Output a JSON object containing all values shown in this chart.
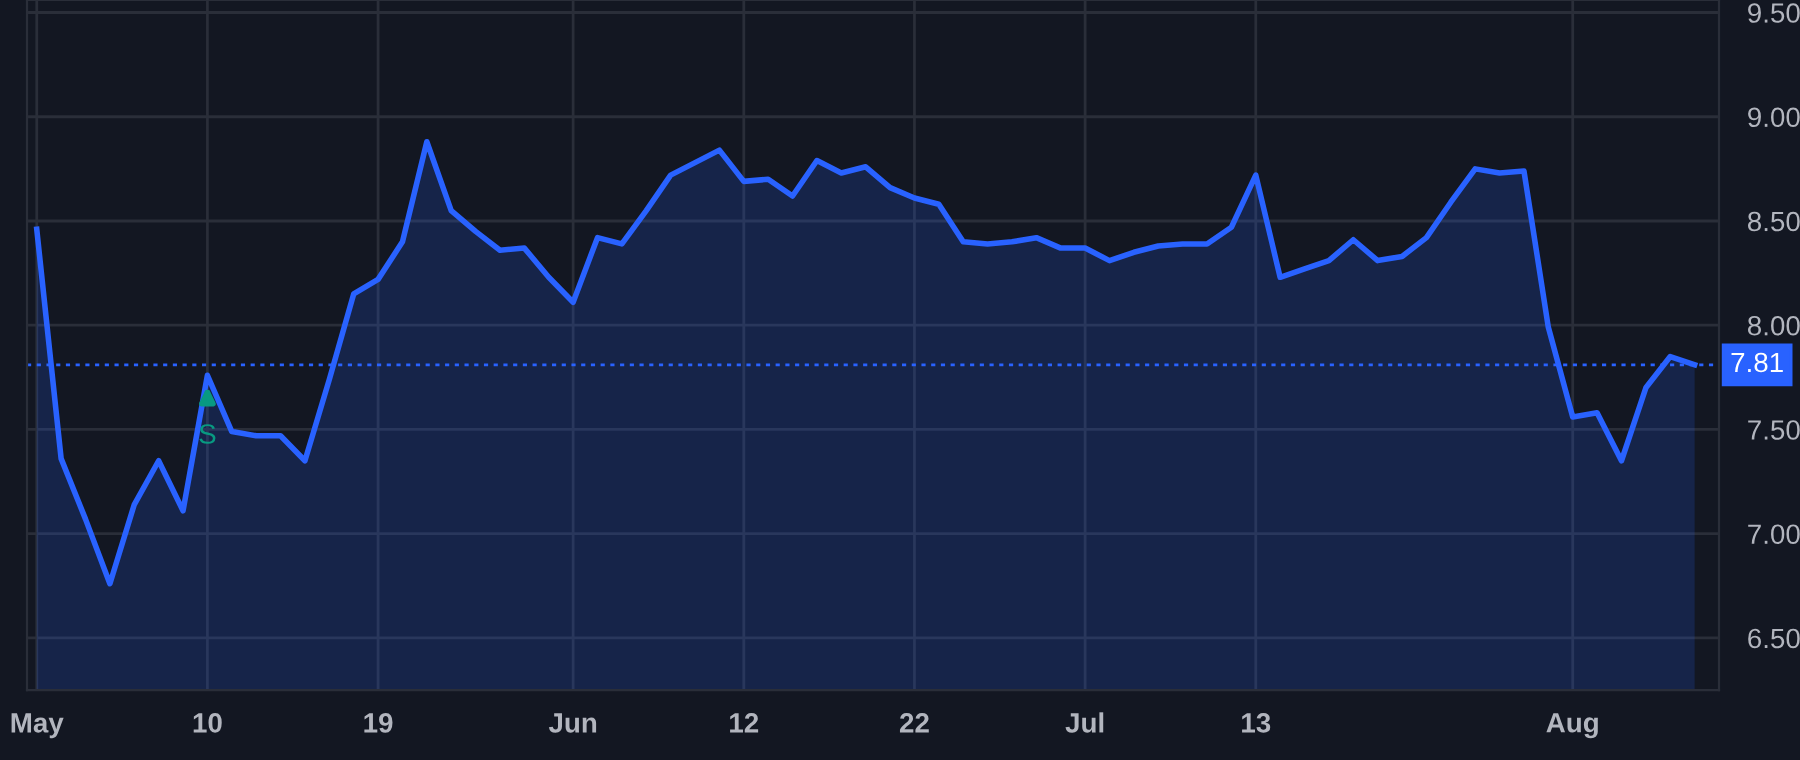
{
  "chart_data": {
    "type": "area",
    "categories": [
      "May",
      null,
      null,
      null,
      null,
      null,
      null,
      "10",
      null,
      null,
      null,
      null,
      null,
      null,
      "19",
      null,
      null,
      null,
      null,
      null,
      null,
      null,
      "Jun",
      null,
      null,
      null,
      null,
      null,
      null,
      "12",
      null,
      null,
      null,
      null,
      null,
      null,
      "22",
      null,
      null,
      null,
      null,
      null,
      null,
      "Jul",
      null,
      null,
      null,
      null,
      null,
      null,
      "13",
      null,
      null,
      null,
      null,
      null,
      null,
      null,
      null,
      null,
      null,
      null,
      null,
      "Aug",
      null,
      null,
      null,
      null,
      null
    ],
    "series": [
      {
        "color": "#2962ff",
        "values": [
          8.46,
          7.36,
          7.07,
          6.76,
          7.14,
          7.35,
          7.11,
          7.76,
          7.49,
          7.47,
          7.47,
          7.35,
          7.74,
          8.15,
          8.22,
          8.4,
          8.88,
          8.55,
          8.45,
          8.36,
          8.37,
          8.23,
          8.11,
          8.42,
          8.39,
          8.55,
          8.72,
          8.78,
          8.84,
          8.69,
          8.7,
          8.62,
          8.79,
          8.73,
          8.76,
          8.66,
          8.61,
          8.58,
          8.4,
          8.39,
          8.4,
          8.42,
          8.37,
          8.37,
          8.31,
          8.35,
          8.38,
          8.39,
          8.39,
          8.47,
          8.72,
          8.23,
          8.27,
          8.31,
          8.41,
          8.31,
          8.33,
          8.42,
          8.59,
          8.75,
          8.73,
          8.74,
          7.99,
          7.56,
          7.58,
          7.35,
          7.7,
          7.85,
          7.81
        ]
      }
    ],
    "ylim": [
      6.25,
      9.56
    ],
    "yticks": [
      {
        "value": 6.5,
        "label": "6.50"
      },
      {
        "value": 7.0,
        "label": "7.00"
      },
      {
        "value": 7.5,
        "label": "7.50"
      },
      {
        "value": 8.0,
        "label": "8.00"
      },
      {
        "value": 8.5,
        "label": "8.50"
      },
      {
        "value": 9.0,
        "label": "9.00"
      },
      {
        "value": 9.5,
        "label": "9.50"
      }
    ],
    "grid": true,
    "ref_lines": [
      {
        "axis": "y",
        "value": 7.81,
        "label": "7.81",
        "color": "#2962ff",
        "line_style": "dotted"
      }
    ],
    "annotations": [
      {
        "text": "S",
        "x": "10",
        "y": 7.76
      }
    ]
  }
}
